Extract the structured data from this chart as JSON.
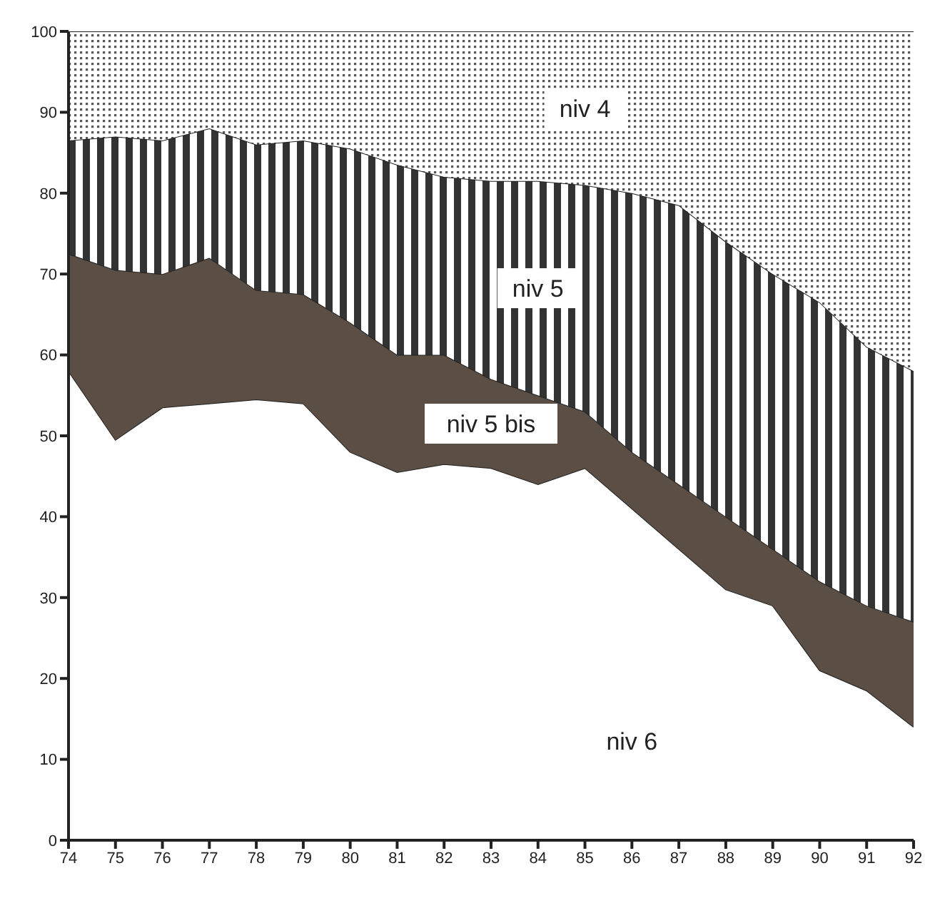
{
  "chart_data": {
    "type": "area",
    "stacked": true,
    "x": [
      74,
      75,
      76,
      77,
      78,
      79,
      80,
      81,
      82,
      83,
      84,
      85,
      86,
      87,
      88,
      89,
      90,
      91,
      92
    ],
    "series": [
      {
        "name": "niv 6",
        "color": "#ffffff",
        "values": [
          58,
          49.5,
          53.5,
          54,
          54.5,
          54,
          48,
          45.5,
          46.5,
          46,
          44,
          46,
          41,
          36,
          31,
          29,
          21,
          18.5,
          14
        ]
      },
      {
        "name": "niv 5 bis",
        "color": "#5a4e45",
        "values": [
          14.5,
          21,
          16.5,
          18,
          13.5,
          13.5,
          16,
          14.5,
          13.5,
          11,
          11,
          7,
          7,
          8,
          9,
          7,
          11,
          10.5,
          13
        ]
      },
      {
        "name": "niv 5",
        "color": "#333333",
        "values": [
          14,
          16.5,
          16.5,
          16,
          18,
          19,
          21.5,
          23.5,
          22,
          24.5,
          26.5,
          28,
          32,
          34.5,
          34,
          34,
          34.5,
          32,
          31
        ]
      },
      {
        "name": "niv 4",
        "color": "#555555",
        "values": [
          13.5,
          13,
          13.5,
          12,
          14,
          13.5,
          14.5,
          16.5,
          18,
          18.5,
          18.5,
          19,
          20,
          21.5,
          26,
          30,
          33.5,
          39,
          42
        ]
      }
    ],
    "xlim": [
      74,
      92
    ],
    "xticks": [
      74,
      75,
      76,
      77,
      78,
      79,
      80,
      81,
      82,
      83,
      84,
      85,
      86,
      87,
      88,
      89,
      90,
      91,
      92
    ],
    "ylim": [
      0,
      100
    ],
    "yticks": [
      0,
      10,
      20,
      30,
      40,
      50,
      60,
      70,
      80,
      90,
      100
    ],
    "grid": false
  }
}
